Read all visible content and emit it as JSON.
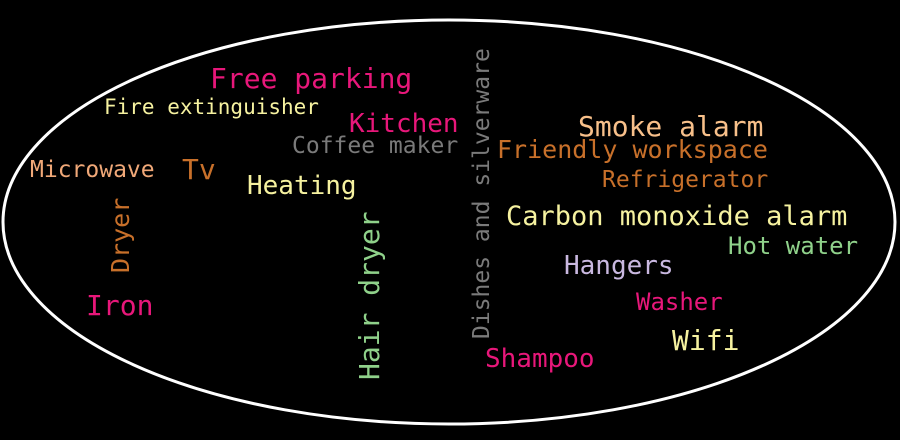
{
  "words": [
    {
      "text": "Free parking",
      "color": "#e8177a",
      "rotated": false
    },
    {
      "text": "Fire extinguisher",
      "color": "#f6f2a0",
      "rotated": false
    },
    {
      "text": "Kitchen",
      "color": "#e8177a",
      "rotated": false
    },
    {
      "text": "Coffee maker",
      "color": "#7a7a7a",
      "rotated": false
    },
    {
      "text": "Microwave",
      "color": "#f0a878",
      "rotated": false
    },
    {
      "text": "Tv",
      "color": "#c8702a",
      "rotated": false
    },
    {
      "text": "Heating",
      "color": "#f6f2a0",
      "rotated": false
    },
    {
      "text": "Dryer",
      "color": "#c8702a",
      "rotated": true
    },
    {
      "text": "Hair dryer",
      "color": "#8fd18a",
      "rotated": true
    },
    {
      "text": "Iron",
      "color": "#e8177a",
      "rotated": false
    },
    {
      "text": "Dishes and silverware",
      "color": "#7a7a7a",
      "rotated": true
    },
    {
      "text": "Smoke alarm",
      "color": "#f8c08a",
      "rotated": false
    },
    {
      "text": "Friendly workspace",
      "color": "#c8702a",
      "rotated": false
    },
    {
      "text": "Refrigerator",
      "color": "#c8702a",
      "rotated": false
    },
    {
      "text": "Carbon monoxide alarm",
      "color": "#f6f2a0",
      "rotated": false
    },
    {
      "text": "Hot water",
      "color": "#8fd18a",
      "rotated": false
    },
    {
      "text": "Hangers",
      "color": "#c9b8e0",
      "rotated": false
    },
    {
      "text": "Washer",
      "color": "#e8177a",
      "rotated": false
    },
    {
      "text": "Wifi",
      "color": "#f6f2a0",
      "rotated": false
    },
    {
      "text": "Shampoo",
      "color": "#e8177a",
      "rotated": false
    }
  ],
  "outline_color": "#ffffff"
}
